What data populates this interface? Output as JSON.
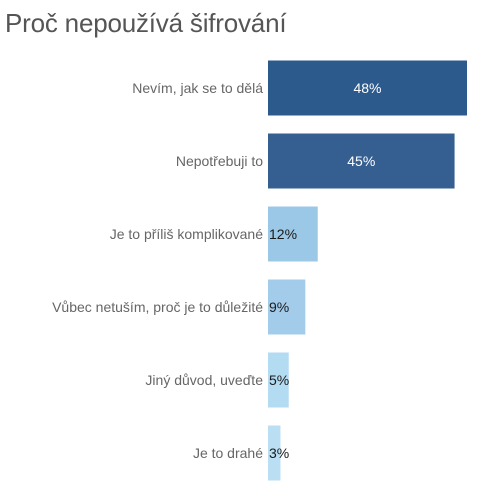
{
  "title": "Proč nepoužívá šifrování",
  "chart_data": {
    "type": "bar",
    "orientation": "horizontal",
    "title": "Proč nepoužívá šifrování",
    "categories": [
      "Nevím, jak se to dělá",
      "Nepotřebuji to",
      "Je to příliš komplikované",
      "Vůbec netuším, proč je to důležité",
      "Jiný důvod, uveďte",
      "Je to drahé"
    ],
    "values": [
      48,
      45,
      12,
      9,
      5,
      3
    ],
    "value_labels": [
      "48%",
      "45%",
      "12%",
      "9%",
      "5%",
      "3%"
    ],
    "bar_colors": [
      "#2c5a8c",
      "#345f90",
      "#9cc8e8",
      "#a3cceb",
      "#b3dbf1",
      "#badff3"
    ],
    "value_label_colors": [
      "#ffffff",
      "#ffffff",
      "#1a1a1a",
      "#1a1a1a",
      "#1a1a1a",
      "#1a1a1a"
    ],
    "xlim": [
      0,
      48
    ],
    "grid": false,
    "legend": "none"
  }
}
